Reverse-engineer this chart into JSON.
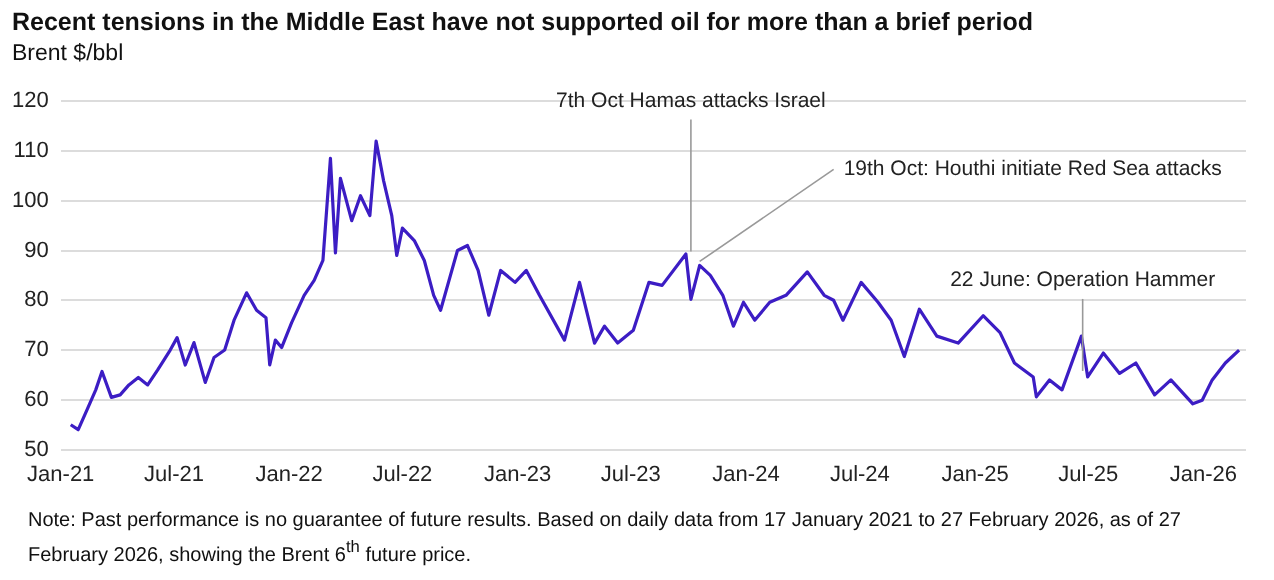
{
  "chart_data": {
    "type": "line",
    "title": "Recent tensions in the Middle East have not supported oil for more than a brief period",
    "ylabel": "Brent $/bbl",
    "x": [
      "2021-01-17",
      "2021-01-29",
      "2021-02-12",
      "2021-02-26",
      "2021-03-08",
      "2021-03-23",
      "2021-04-06",
      "2021-04-20",
      "2021-05-05",
      "2021-05-20",
      "2021-06-05",
      "2021-06-25",
      "2021-07-06",
      "2021-07-19",
      "2021-08-02",
      "2021-08-20",
      "2021-09-03",
      "2021-09-20",
      "2021-10-05",
      "2021-10-25",
      "2021-11-10",
      "2021-11-25",
      "2021-12-01",
      "2021-12-10",
      "2021-12-20",
      "2022-01-05",
      "2022-01-25",
      "2022-02-10",
      "2022-02-24",
      "2022-03-08",
      "2022-03-16",
      "2022-03-24",
      "2022-04-11",
      "2022-04-25",
      "2022-05-10",
      "2022-05-20",
      "2022-06-01",
      "2022-06-14",
      "2022-06-22",
      "2022-07-01",
      "2022-07-20",
      "2022-08-05",
      "2022-08-20",
      "2022-08-31",
      "2022-09-27",
      "2022-10-13",
      "2022-10-30",
      "2022-11-16",
      "2022-12-05",
      "2022-12-28",
      "2023-01-15",
      "2023-02-05",
      "2023-03-17",
      "2023-04-10",
      "2023-05-04",
      "2023-05-20",
      "2023-06-10",
      "2023-07-05",
      "2023-07-30",
      "2023-08-20",
      "2023-09-27",
      "2023-10-05",
      "2023-10-19",
      "2023-11-05",
      "2023-11-25",
      "2023-12-12",
      "2023-12-28",
      "2024-01-15",
      "2024-02-08",
      "2024-03-05",
      "2024-04-08",
      "2024-05-05",
      "2024-05-20",
      "2024-06-04",
      "2024-07-03",
      "2024-07-30",
      "2024-08-20",
      "2024-09-10",
      "2024-10-04",
      "2024-11-01",
      "2024-12-05",
      "2025-01-14",
      "2025-02-10",
      "2025-03-05",
      "2025-04-04",
      "2025-04-09",
      "2025-04-30",
      "2025-05-20",
      "2025-06-20",
      "2025-06-30",
      "2025-07-25",
      "2025-08-20",
      "2025-09-15",
      "2025-10-15",
      "2025-11-10",
      "2025-12-15",
      "2025-12-30",
      "2026-01-15",
      "2026-02-05",
      "2026-02-27"
    ],
    "values": [
      55,
      54,
      58,
      62,
      65.7,
      60.5,
      61,
      63,
      64.5,
      63,
      66,
      70,
      72.5,
      67,
      71.5,
      63.5,
      68.5,
      70,
      76,
      81.5,
      78,
      76.5,
      67,
      72,
      70.5,
      75.5,
      81,
      84,
      88,
      108.5,
      89.5,
      104.5,
      96,
      101,
      97,
      112,
      104,
      97,
      89,
      94.5,
      92,
      88,
      81,
      78,
      90,
      91,
      86,
      77,
      86,
      83.6,
      86,
      81,
      72,
      83.6,
      71.4,
      74.8,
      71.4,
      74,
      83.6,
      83,
      89.3,
      80.2,
      87,
      85,
      81,
      74.8,
      79.6,
      76,
      79.6,
      81,
      85.7,
      81,
      80,
      76,
      83.6,
      79.6,
      76,
      68.7,
      78.2,
      72.8,
      71.4,
      76.9,
      73.5,
      67.4,
      64.6,
      60.6,
      64,
      62,
      72.8,
      64.6,
      69.4,
      65.3,
      67.4,
      61,
      64,
      59.2,
      59.9,
      64,
      67.4,
      70
    ],
    "color": "#3c1dc4",
    "xlim": [
      "2021-01-01",
      "2026-03-10"
    ],
    "xticks": [
      {
        "value": "2021-01-01",
        "label": "Jan-21"
      },
      {
        "value": "2021-07-01",
        "label": "Jul-21"
      },
      {
        "value": "2022-01-01",
        "label": "Jan-22"
      },
      {
        "value": "2022-07-01",
        "label": "Jul-22"
      },
      {
        "value": "2023-01-01",
        "label": "Jan-23"
      },
      {
        "value": "2023-07-01",
        "label": "Jul-23"
      },
      {
        "value": "2024-01-01",
        "label": "Jan-24"
      },
      {
        "value": "2024-07-01",
        "label": "Jul-24"
      },
      {
        "value": "2025-01-01",
        "label": "Jan-25"
      },
      {
        "value": "2025-07-01",
        "label": "Jul-25"
      },
      {
        "value": "2026-01-01",
        "label": "Jan-26"
      }
    ],
    "ylim": [
      50,
      120
    ],
    "yticks": [
      50,
      60,
      70,
      80,
      90,
      100,
      110,
      120
    ],
    "grid": "y",
    "legend": false,
    "marker": "none",
    "line_style": "solid",
    "annotations": [
      {
        "text": "7th Oct Hamas attacks Israel",
        "x": "2023-10-05",
        "y": 89
      },
      {
        "text": "19th Oct: Houthi initiate Red Sea attacks",
        "x": "2023-10-19",
        "y": 87
      },
      {
        "text": "22 June: Operation Hammer",
        "x": "2025-06-22",
        "y": 65
      },
      "Note: Past performance is no guarantee of future results. Based on daily data from 17 January 2021 to 27 February 2026, as of 27 February 2026, showing the Brent 6$^{th}$ future price."
    ]
  }
}
